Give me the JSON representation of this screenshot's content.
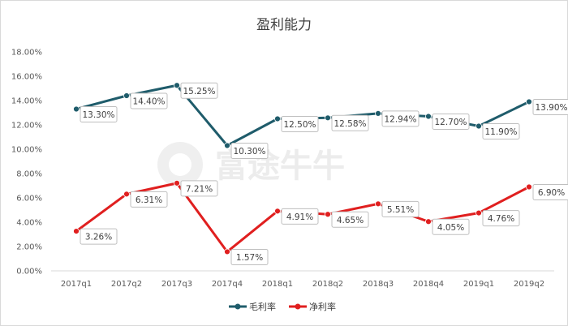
{
  "chart_data": {
    "type": "line",
    "title": "盈利能力",
    "categories": [
      "2017q1",
      "2017q2",
      "2017q3",
      "2017q4",
      "2018q1",
      "2018q2",
      "2018q3",
      "2018q4",
      "2019q1",
      "2019q2"
    ],
    "ylim": [
      0,
      18
    ],
    "yticks": [
      "0.00%",
      "2.00%",
      "4.00%",
      "6.00%",
      "8.00%",
      "10.00%",
      "12.00%",
      "14.00%",
      "16.00%",
      "18.00%"
    ],
    "grid": false,
    "legend_position": "bottom",
    "series": [
      {
        "name": "毛利率",
        "color": "#1f5c6b",
        "values": [
          13.3,
          14.4,
          15.25,
          10.3,
          12.5,
          12.58,
          12.94,
          12.7,
          11.9,
          13.9
        ],
        "labels": [
          "13.30%",
          "14.40%",
          "15.25%",
          "10.30%",
          "12.50%",
          "12.58%",
          "12.94%",
          "12.70%",
          "11.90%",
          "13.90%"
        ]
      },
      {
        "name": "净利率",
        "color": "#e01f1f",
        "values": [
          3.26,
          6.31,
          7.21,
          1.57,
          4.91,
          4.65,
          5.51,
          4.05,
          4.76,
          6.9
        ],
        "labels": [
          "3.26%",
          "6.31%",
          "7.21%",
          "1.57%",
          "4.91%",
          "4.65%",
          "5.51%",
          "4.05%",
          "4.76%",
          "6.90%"
        ]
      }
    ]
  },
  "watermark": {
    "text": "富途牛牛"
  }
}
